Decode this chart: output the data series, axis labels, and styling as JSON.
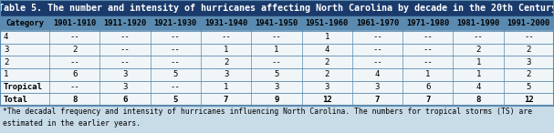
{
  "title": "Table 5. The number and intensity of hurricanes affecting North Carolina by decade in the 20th Century",
  "title_bg": "#1a3a6b",
  "title_color": "#ffffff",
  "header_bg": "#5a8ab0",
  "header_color": "#000000",
  "col_headers": [
    "Category",
    "1901-1910",
    "1911-1920",
    "1921-1930",
    "1931-1940",
    "1941-1950",
    "1951-1960",
    "1961-1970",
    "1971-1980",
    "1981-1990",
    "1991-2000"
  ],
  "rows": [
    [
      "4",
      "--",
      "--",
      "--",
      "--",
      "--",
      "1",
      "--",
      "--",
      "--",
      "--"
    ],
    [
      "3",
      "2",
      "--",
      "--",
      "1",
      "1",
      "4",
      "--",
      "--",
      "2",
      "2"
    ],
    [
      "2",
      "--",
      "--",
      "--",
      "2",
      "--",
      "2",
      "--",
      "--",
      "1",
      "3"
    ],
    [
      "1",
      "6",
      "3",
      "5",
      "3",
      "5",
      "2",
      "4",
      "1",
      "1",
      "2"
    ],
    [
      "Tropical",
      "--",
      "3",
      "--",
      "1",
      "3",
      "3",
      "3",
      "6",
      "4",
      "5"
    ],
    [
      "Total",
      "8",
      "6",
      "5",
      "7",
      "9",
      "12",
      "7",
      "7",
      "8",
      "12"
    ]
  ],
  "bold_rows": [
    5
  ],
  "bold_col0": [
    4,
    5
  ],
  "footnote": "*The decadal frequency and intensity of hurricanes influencing North Carolina. The numbers for tropical storms (TS) are\nestimated in the earlier years.",
  "border_color": "#5a8ab0",
  "bg_color": "#c8dce8",
  "row_bg": "#f0f5f8",
  "total_row_bg": "#d0e0eb"
}
